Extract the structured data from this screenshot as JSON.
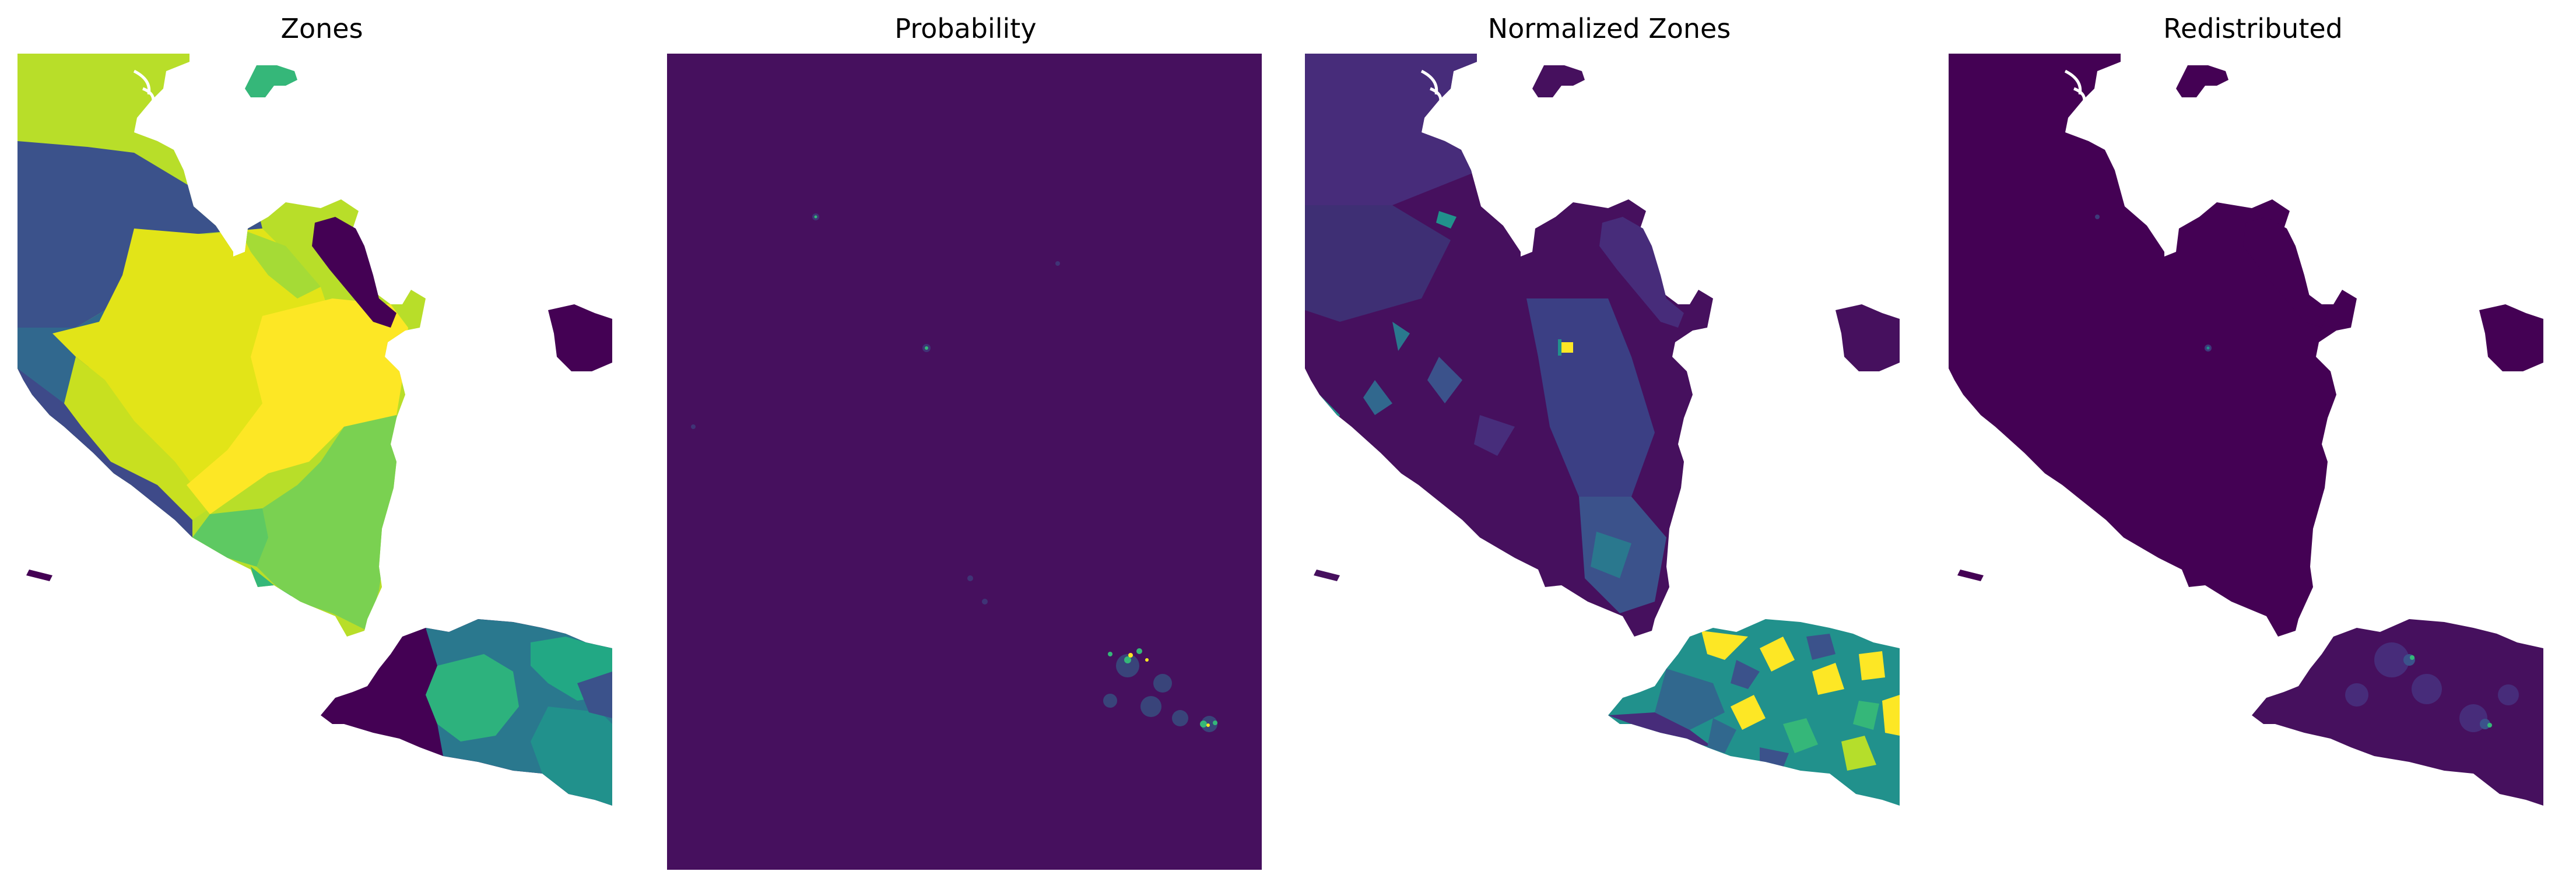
{
  "panels": [
    {
      "title": "Zones"
    },
    {
      "title": "Probability"
    },
    {
      "title": "Normalized Zones"
    },
    {
      "title": "Redistributed"
    }
  ],
  "colors": {
    "viridis_dark": "#440154",
    "viridis_purple": "#46105e",
    "viridis_indigo": "#3b528b",
    "viridis_blue": "#31688e",
    "viridis_teal": "#21918c",
    "viridis_green": "#35b779",
    "viridis_lime": "#90d743",
    "viridis_yellow": "#fde725",
    "background": "#ffffff"
  }
}
